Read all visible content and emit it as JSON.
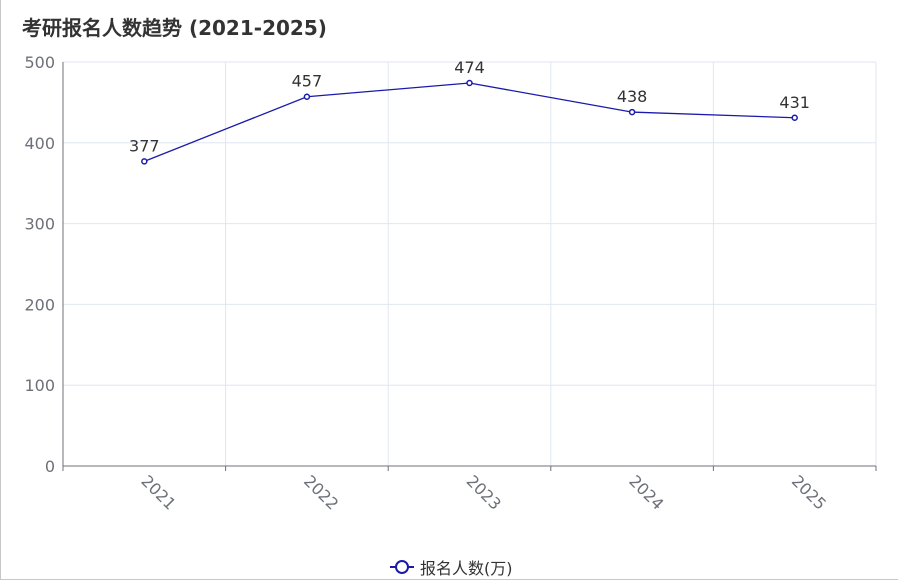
{
  "chart_data": {
    "type": "line",
    "title": "考研报名人数趋势 (2021-2025)",
    "categories": [
      "2021",
      "2022",
      "2023",
      "2024",
      "2025"
    ],
    "series": [
      {
        "name": "报名人数(万)",
        "values": [
          377,
          457,
          474,
          438,
          431
        ],
        "color": "#1a1aaa"
      }
    ],
    "ylim": [
      0,
      500
    ],
    "yticks": [
      0,
      100,
      200,
      300,
      400,
      500
    ],
    "grid": true,
    "show_data_labels": true,
    "x_label_rotation": "rotated",
    "legend_position": "bottom-center"
  },
  "colors": {
    "line": "#1a1aaa",
    "axis": "#6e7079",
    "grid": "#e0e6f1"
  }
}
